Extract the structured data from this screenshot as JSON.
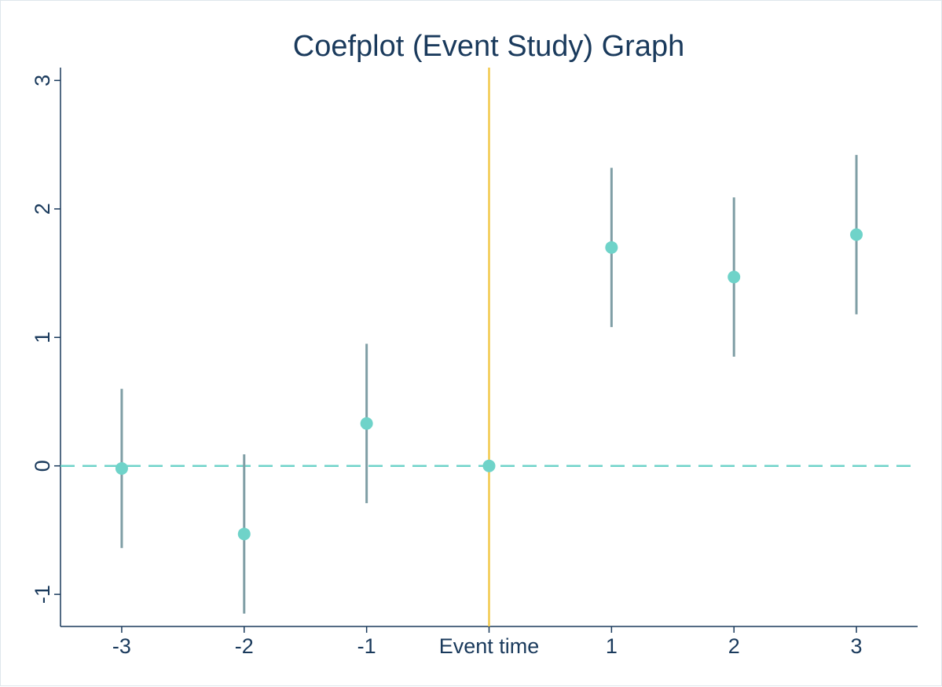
{
  "chart_data": {
    "type": "scatter",
    "title": "Coefplot (Event Study) Graph",
    "xlabel": "",
    "ylabel": "",
    "categories": [
      "-3",
      "-2",
      "-1",
      "Event time",
      "1",
      "2",
      "3"
    ],
    "x": [
      -3,
      -2,
      -1,
      0,
      1,
      2,
      3
    ],
    "series": [
      {
        "values": [
          -0.02,
          -0.53,
          0.33,
          0.0,
          1.7,
          1.47,
          1.8
        ],
        "ci_low": [
          -0.64,
          -1.15,
          -0.29,
          0.0,
          1.08,
          0.85,
          1.18
        ],
        "ci_high": [
          0.6,
          0.09,
          0.95,
          0.0,
          2.32,
          2.09,
          2.42
        ]
      }
    ],
    "yticks": [
      -1,
      0,
      1,
      2,
      3
    ],
    "ytick_labels": [
      "-1",
      "0",
      "1",
      "2",
      "3"
    ],
    "ylim": [
      -1.25,
      3.1
    ],
    "xlim": [
      -3.5,
      3.5
    ],
    "reference_line_y": 0,
    "reference_line_x": 0,
    "grid": false,
    "colors": {
      "point": "#6fd3c9",
      "ci": "#7f9ea5",
      "zero_line": "#6fd3c9",
      "event_line": "#f2c94c",
      "axis": "#1a3a5c",
      "text": "#1a3a5c"
    }
  }
}
